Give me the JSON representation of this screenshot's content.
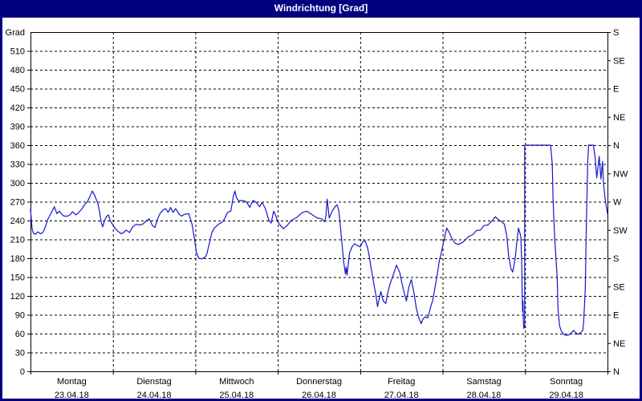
{
  "window": {
    "title": "Windrichtung [Grad]"
  },
  "colors": {
    "titlebar_bg": "#000080",
    "titlebar_text": "#ffffff",
    "window_border": "#000080",
    "plot_bg": "#ffffff",
    "frame": "#000000",
    "grid": "#000000",
    "tick_text": "#000000",
    "line": "#1515cd"
  },
  "chart_data": {
    "type": "line",
    "title": "Windrichtung [Grad]",
    "grid": "dashed",
    "legend_position": "none",
    "y_axis_left": {
      "unit_label": "Grad",
      "min": 0,
      "max": 540,
      "tick_step": 30,
      "tick_labels": [
        "0",
        "30",
        "60",
        "90",
        "120",
        "150",
        "180",
        "210",
        "240",
        "270",
        "300",
        "330",
        "360",
        "390",
        "420",
        "450",
        "480",
        "510"
      ]
    },
    "y_axis_right": {
      "labels": [
        {
          "grad": 0,
          "text": "N"
        },
        {
          "grad": 45,
          "text": "NE"
        },
        {
          "grad": 90,
          "text": "E"
        },
        {
          "grad": 135,
          "text": "SE"
        },
        {
          "grad": 180,
          "text": "S"
        },
        {
          "grad": 225,
          "text": "SW"
        },
        {
          "grad": 270,
          "text": "W"
        },
        {
          "grad": 315,
          "text": "NW"
        },
        {
          "grad": 360,
          "text": "N"
        },
        {
          "grad": 405,
          "text": "NE"
        },
        {
          "grad": 450,
          "text": "E"
        },
        {
          "grad": 495,
          "text": "SE"
        },
        {
          "grad": 540,
          "text": "S"
        }
      ]
    },
    "x_axis": {
      "min_day": 0,
      "max_day": 7,
      "day_labels": [
        {
          "line1": "Montag",
          "line2": "23.04.18"
        },
        {
          "line1": "Dienstag",
          "line2": "24.04.18"
        },
        {
          "line1": "Mittwoch",
          "line2": "25.04.18"
        },
        {
          "line1": "Donnerstag",
          "line2": "26.04.18"
        },
        {
          "line1": "Freitag",
          "line2": "27.04.18"
        },
        {
          "line1": "Samstag",
          "line2": "28.04.18"
        },
        {
          "line1": "Sonntag",
          "line2": "29.04.18"
        }
      ]
    },
    "series": [
      {
        "name": "Windrichtung",
        "color": "#1515cd",
        "points": [
          [
            0,
            258
          ],
          [
            0.02,
            226
          ],
          [
            0.035,
            220
          ],
          [
            0.06,
            218
          ],
          [
            0.09,
            222
          ],
          [
            0.12,
            219
          ],
          [
            0.15,
            221
          ],
          [
            0.175,
            228
          ],
          [
            0.21,
            242
          ],
          [
            0.25,
            252
          ],
          [
            0.29,
            262
          ],
          [
            0.32,
            251
          ],
          [
            0.35,
            255
          ],
          [
            0.38,
            250
          ],
          [
            0.41,
            247
          ],
          [
            0.45,
            247
          ],
          [
            0.48,
            249
          ],
          [
            0.51,
            254
          ],
          [
            0.55,
            249
          ],
          [
            0.58,
            252
          ],
          [
            0.62,
            258
          ],
          [
            0.655,
            265
          ],
          [
            0.69,
            270
          ],
          [
            0.72,
            278
          ],
          [
            0.75,
            287
          ],
          [
            0.775,
            281
          ],
          [
            0.8,
            273
          ],
          [
            0.82,
            266
          ],
          [
            0.84,
            252
          ],
          [
            0.86,
            236
          ],
          [
            0.875,
            230
          ],
          [
            0.9,
            240
          ],
          [
            0.92,
            246
          ],
          [
            0.945,
            249
          ],
          [
            0.97,
            239
          ],
          [
            1,
            233
          ],
          [
            1.03,
            227
          ],
          [
            1.06,
            223
          ],
          [
            1.1,
            219
          ],
          [
            1.13,
            221
          ],
          [
            1.16,
            225
          ],
          [
            1.2,
            221
          ],
          [
            1.24,
            230
          ],
          [
            1.28,
            234
          ],
          [
            1.32,
            233
          ],
          [
            1.36,
            234
          ],
          [
            1.41,
            240
          ],
          [
            1.44,
            243
          ],
          [
            1.48,
            232
          ],
          [
            1.51,
            229
          ],
          [
            1.54,
            242
          ],
          [
            1.57,
            251
          ],
          [
            1.61,
            257
          ],
          [
            1.64,
            259
          ],
          [
            1.67,
            253
          ],
          [
            1.7,
            261
          ],
          [
            1.73,
            253
          ],
          [
            1.76,
            259
          ],
          [
            1.8,
            251
          ],
          [
            1.83,
            247
          ],
          [
            1.87,
            250
          ],
          [
            1.92,
            251
          ],
          [
            1.96,
            234
          ],
          [
            1.99,
            210
          ],
          [
            2.01,
            191
          ],
          [
            2.04,
            180
          ],
          [
            2.08,
            179
          ],
          [
            2.12,
            182
          ],
          [
            2.14,
            187
          ],
          [
            2.17,
            204
          ],
          [
            2.2,
            221
          ],
          [
            2.23,
            228
          ],
          [
            2.28,
            234
          ],
          [
            2.33,
            238
          ],
          [
            2.36,
            244
          ],
          [
            2.39,
            253
          ],
          [
            2.43,
            255
          ],
          [
            2.46,
            278
          ],
          [
            2.48,
            287
          ],
          [
            2.5,
            276
          ],
          [
            2.53,
            271
          ],
          [
            2.57,
            272
          ],
          [
            2.62,
            270
          ],
          [
            2.66,
            261
          ],
          [
            2.7,
            272
          ],
          [
            2.74,
            269
          ],
          [
            2.78,
            262
          ],
          [
            2.81,
            269
          ],
          [
            2.85,
            259
          ],
          [
            2.89,
            241
          ],
          [
            2.92,
            236
          ],
          [
            2.95,
            255
          ],
          [
            2.98,
            246
          ],
          [
            3,
            238
          ],
          [
            3.04,
            231
          ],
          [
            3.07,
            227
          ],
          [
            3.12,
            233
          ],
          [
            3.16,
            240
          ],
          [
            3.23,
            245
          ],
          [
            3.3,
            253
          ],
          [
            3.35,
            255
          ],
          [
            3.42,
            249
          ],
          [
            3.48,
            244
          ],
          [
            3.53,
            243
          ],
          [
            3.57,
            238
          ],
          [
            3.585,
            248
          ],
          [
            3.6,
            274
          ],
          [
            3.625,
            244
          ],
          [
            3.66,
            255
          ],
          [
            3.7,
            263
          ],
          [
            3.72,
            265
          ],
          [
            3.74,
            256
          ],
          [
            3.76,
            230
          ],
          [
            3.78,
            201
          ],
          [
            3.8,
            174
          ],
          [
            3.82,
            155
          ],
          [
            3.83,
            166
          ],
          [
            3.84,
            153
          ],
          [
            3.87,
            188
          ],
          [
            3.9,
            198
          ],
          [
            3.93,
            203
          ],
          [
            3.97,
            200
          ],
          [
            4,
            198
          ],
          [
            4.03,
            206
          ],
          [
            4.06,
            208
          ],
          [
            4.09,
            196
          ],
          [
            4.11,
            183
          ],
          [
            4.13,
            166
          ],
          [
            4.15,
            151
          ],
          [
            4.17,
            136
          ],
          [
            4.19,
            122
          ],
          [
            4.21,
            103
          ],
          [
            4.23,
            115
          ],
          [
            4.25,
            127
          ],
          [
            4.28,
            112
          ],
          [
            4.31,
            108
          ],
          [
            4.33,
            123
          ],
          [
            4.36,
            138
          ],
          [
            4.4,
            153
          ],
          [
            4.44,
            169
          ],
          [
            4.48,
            157
          ],
          [
            4.51,
            138
          ],
          [
            4.54,
            122
          ],
          [
            4.56,
            112
          ],
          [
            4.59,
            134
          ],
          [
            4.62,
            146
          ],
          [
            4.65,
            127
          ],
          [
            4.68,
            101
          ],
          [
            4.71,
            85
          ],
          [
            4.74,
            76
          ],
          [
            4.76,
            83
          ],
          [
            4.79,
            87
          ],
          [
            4.82,
            85
          ],
          [
            4.84,
            95
          ],
          [
            4.86,
            105
          ],
          [
            4.88,
            113
          ],
          [
            4.9,
            128
          ],
          [
            4.92,
            143
          ],
          [
            4.94,
            158
          ],
          [
            4.96,
            177
          ],
          [
            4.98,
            186
          ],
          [
            5,
            199
          ],
          [
            5.02,
            211
          ],
          [
            5.05,
            228
          ],
          [
            5.08,
            221
          ],
          [
            5.11,
            212
          ],
          [
            5.15,
            204
          ],
          [
            5.19,
            202
          ],
          [
            5.24,
            205
          ],
          [
            5.28,
            210
          ],
          [
            5.32,
            215
          ],
          [
            5.36,
            217
          ],
          [
            5.41,
            224
          ],
          [
            5.46,
            225
          ],
          [
            5.5,
            232
          ],
          [
            5.55,
            233
          ],
          [
            5.6,
            240
          ],
          [
            5.64,
            246
          ],
          [
            5.68,
            241
          ],
          [
            5.72,
            238
          ],
          [
            5.75,
            234
          ],
          [
            5.78,
            214
          ],
          [
            5.8,
            185
          ],
          [
            5.83,
            163
          ],
          [
            5.85,
            158
          ],
          [
            5.88,
            180
          ],
          [
            5.9,
            205
          ],
          [
            5.92,
            228
          ],
          [
            5.94,
            219
          ],
          [
            5.95,
            213
          ],
          [
            5.96,
            168
          ],
          [
            5.965,
            122
          ],
          [
            5.97,
            95
          ],
          [
            5.975,
            112
          ],
          [
            5.98,
            80
          ],
          [
            5.985,
            68
          ],
          [
            5.99,
            72
          ],
          [
            5.995,
            70
          ],
          [
            5.995,
            360
          ],
          [
            6.31,
            360
          ],
          [
            6.33,
            330
          ],
          [
            6.34,
            272
          ],
          [
            6.35,
            242
          ],
          [
            6.36,
            210
          ],
          [
            6.375,
            180
          ],
          [
            6.39,
            149
          ],
          [
            6.4,
            98
          ],
          [
            6.42,
            72
          ],
          [
            6.44,
            64
          ],
          [
            6.47,
            59
          ],
          [
            6.5,
            57
          ],
          [
            6.53,
            58
          ],
          [
            6.56,
            61
          ],
          [
            6.59,
            65
          ],
          [
            6.61,
            62
          ],
          [
            6.64,
            59
          ],
          [
            6.67,
            61
          ],
          [
            6.7,
            65
          ],
          [
            6.71,
            77
          ],
          [
            6.73,
            130
          ],
          [
            6.74,
            208
          ],
          [
            6.75,
            272
          ],
          [
            6.76,
            330
          ],
          [
            6.77,
            360
          ],
          [
            6.83,
            360
          ],
          [
            6.85,
            340
          ],
          [
            6.87,
            308
          ],
          [
            6.9,
            342
          ],
          [
            6.92,
            306
          ],
          [
            6.94,
            334
          ],
          [
            6.95,
            302
          ],
          [
            6.97,
            276
          ],
          [
            7,
            251
          ]
        ]
      }
    ]
  }
}
